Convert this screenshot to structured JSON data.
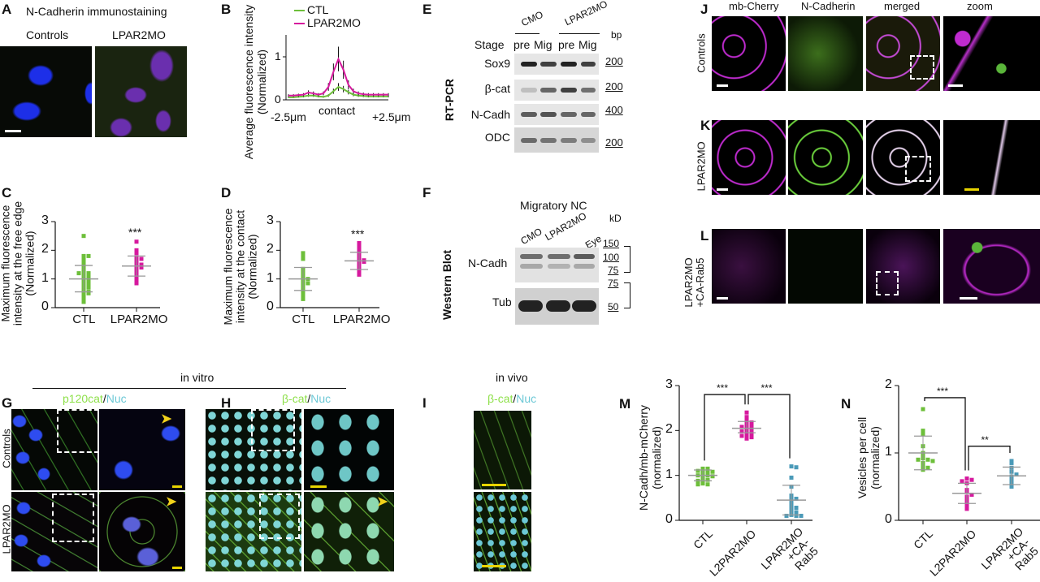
{
  "panels": {
    "A": {
      "letter": "A",
      "title": "N-Cadherin immunostaining",
      "cols": [
        "Controls",
        "LPAR2MO"
      ]
    },
    "B": {
      "letter": "B"
    },
    "C": {
      "letter": "C"
    },
    "D": {
      "letter": "D"
    },
    "E": {
      "letter": "E",
      "method": "RT-PCR",
      "groups": [
        "CMO",
        "LPAR2MO"
      ],
      "stage_label": "Stage",
      "stages": [
        "pre",
        "Mig",
        "pre",
        "Mig"
      ],
      "unit": "bp",
      "rows": [
        {
          "gene": "Sox9",
          "marker": "200"
        },
        {
          "gene": "β-cat",
          "marker": "200"
        },
        {
          "gene": "N-Cadh",
          "marker": "400"
        },
        {
          "gene": "ODC",
          "marker": "200"
        }
      ]
    },
    "F": {
      "letter": "F",
      "method": "Western Blot",
      "title": "Migratory NC",
      "lanes": [
        "CMO",
        "LPAR2MO",
        "Eye"
      ],
      "unit": "kD",
      "rows": [
        "N-Cadh",
        "Tub"
      ],
      "markers": [
        "150",
        "100",
        "75",
        "75",
        "50"
      ]
    },
    "J": {
      "letter": "J",
      "row_label": "Controls"
    },
    "K": {
      "letter": "K",
      "row_label": "LPAR2MO"
    },
    "L": {
      "letter": "L",
      "row_label_1": "LPAR2MO",
      "row_label_2": "+CA-Rab5"
    },
    "JKL_cols": [
      "mb-Cherry",
      "N-Cadherin",
      "merged",
      "zoom"
    ],
    "in_vitro": "in vitro",
    "in_vivo": "in vivo",
    "G": {
      "letter": "G",
      "stain_green": "p120cat",
      "sep": "/",
      "stain_cyan": "Nuc",
      "rows": [
        "Controls",
        "LPAR2MO"
      ]
    },
    "H": {
      "letter": "H",
      "stain_green": "β-cat",
      "sep": "/",
      "stain_cyan": "Nuc"
    },
    "I": {
      "letter": "I",
      "stain_green": "β-cat",
      "sep": "/",
      "stain_cyan": "Nuc"
    },
    "M": {
      "letter": "M"
    },
    "N": {
      "letter": "N"
    }
  },
  "colors": {
    "ctl": "#6dbf3a",
    "lpar2mo": "#d6199e",
    "rab5": "#4a9ab8",
    "mean": "#999999"
  },
  "chart_data": [
    {
      "panel": "B",
      "type": "line",
      "ylabel": "Average fluorescence intensity (Normalized)",
      "xtick_labels": [
        "-2.5μm",
        "contact",
        "+2.5μm"
      ],
      "yticks": [
        0,
        1
      ],
      "ylim": [
        0,
        1.3
      ],
      "xlim": [
        -2.5,
        2.5
      ],
      "x": [
        -2.5,
        -2.25,
        -2,
        -1.75,
        -1.5,
        -1.25,
        -1,
        -0.75,
        -0.5,
        -0.25,
        0,
        0.25,
        0.5,
        0.75,
        1,
        1.25,
        1.5,
        1.75,
        2,
        2.25,
        2.5
      ],
      "series": [
        {
          "name": "CTL",
          "color": "#6dbf3a",
          "values": [
            0.06,
            0.06,
            0.07,
            0.08,
            0.1,
            0.1,
            0.08,
            0.07,
            0.1,
            0.2,
            0.3,
            0.25,
            0.18,
            0.12,
            0.1,
            0.09,
            0.08,
            0.08,
            0.08,
            0.08,
            0.08
          ]
        },
        {
          "name": "LPAR2MO",
          "color": "#d6199e",
          "values": [
            0.1,
            0.1,
            0.11,
            0.12,
            0.17,
            0.15,
            0.12,
            0.15,
            0.3,
            0.65,
            0.95,
            0.7,
            0.35,
            0.2,
            0.15,
            0.13,
            0.12,
            0.12,
            0.12,
            0.12,
            0.12
          ]
        }
      ]
    },
    {
      "panel": "C",
      "type": "scatter",
      "ylabel": "Maximum fluorescence intensity at the free edge (Normalized)",
      "ylim": [
        0,
        3
      ],
      "yticks": [
        0,
        1,
        2,
        3
      ],
      "categories": [
        "CTL",
        "LPAR2MO"
      ],
      "significance": [
        "",
        "***"
      ],
      "series": [
        {
          "color": "#6dbf3a",
          "mean": 1.0,
          "sd": [
            0.55,
            1.47
          ],
          "values": [
            2.5,
            1.8,
            1.8,
            1.75,
            1.7,
            1.65,
            1.6,
            1.5,
            1.45,
            1.4,
            1.35,
            1.3,
            1.2,
            1.2,
            1.2,
            1.15,
            1.15,
            1.1,
            1.1,
            1.05,
            1.0,
            1.0,
            0.95,
            0.95,
            0.9,
            0.9,
            0.85,
            0.8,
            0.8,
            0.75,
            0.75,
            0.7,
            0.7,
            0.65,
            0.6,
            0.55,
            0.55,
            0.5,
            0.5,
            0.45,
            0.4,
            0.35,
            0.3,
            0.25,
            0.2
          ]
        },
        {
          "color": "#d6199e",
          "mean": 1.45,
          "sd": [
            1.1,
            1.8
          ],
          "values": [
            2.3,
            2.0,
            1.9,
            1.75,
            1.7,
            1.7,
            1.65,
            1.6,
            1.55,
            1.5,
            1.5,
            1.45,
            1.4,
            1.4,
            1.35,
            1.3,
            1.25,
            1.2,
            1.15,
            1.1,
            1.05,
            1.0,
            0.95,
            0.85
          ]
        }
      ]
    },
    {
      "panel": "D",
      "type": "scatter",
      "ylabel": "Maximum fluorescence intensity at the contact (Normalized)",
      "ylim": [
        0,
        3
      ],
      "yticks": [
        0,
        1,
        2,
        3
      ],
      "categories": [
        "CTL",
        "LPAR2MO"
      ],
      "significance": [
        "",
        "***"
      ],
      "series": [
        {
          "color": "#6dbf3a",
          "mean": 1.0,
          "sd": [
            0.6,
            1.4
          ],
          "values": [
            1.9,
            1.8,
            1.7,
            1.35,
            1.25,
            1.2,
            1.1,
            1.0,
            1.0,
            0.95,
            0.9,
            0.85,
            0.85,
            0.8,
            0.75,
            0.7,
            0.65,
            0.6,
            0.5,
            0.4,
            0.3
          ]
        },
        {
          "color": "#d6199e",
          "mean": 1.63,
          "sd": [
            1.33,
            1.93
          ],
          "values": [
            2.25,
            2.2,
            2.1,
            2.0,
            1.9,
            1.85,
            1.8,
            1.75,
            1.7,
            1.65,
            1.65,
            1.6,
            1.6,
            1.55,
            1.5,
            1.45,
            1.4,
            1.35,
            1.3,
            1.25,
            1.2,
            1.15
          ]
        }
      ]
    },
    {
      "panel": "M",
      "type": "scatter",
      "ylabel": "N-Cadh/mb-mCherry (normalized)",
      "ylim": [
        0,
        3
      ],
      "yticks": [
        0,
        1,
        2,
        3
      ],
      "categories": [
        "CTL",
        "L2PAR2MO",
        "LPAR2MO +CA-Rab5"
      ],
      "brackets": [
        {
          "from": 0,
          "to": 1,
          "label": "***"
        },
        {
          "from": 1,
          "to": 2,
          "label": "***"
        }
      ],
      "series": [
        {
          "color": "#6dbf3a",
          "mean": 1.0,
          "sd": [
            0.88,
            1.12
          ],
          "values": [
            1.15,
            1.15,
            1.12,
            1.1,
            1.1,
            1.08,
            1.05,
            1.05,
            1.02,
            1.0,
            1.0,
            0.98,
            0.95,
            0.92,
            0.9,
            0.88,
            0.85,
            0.82,
            0.8,
            0.8
          ]
        },
        {
          "color": "#d6199e",
          "mean": 2.05,
          "sd": [
            1.95,
            2.2
          ],
          "values": [
            2.4,
            2.3,
            2.25,
            2.2,
            2.18,
            2.15,
            2.12,
            2.1,
            2.08,
            2.05,
            2.05,
            2.02,
            2.0,
            1.98,
            1.95,
            1.92,
            1.9,
            1.88,
            1.85,
            1.85,
            1.82
          ]
        },
        {
          "color": "#4a9ab8",
          "mean": 0.45,
          "sd": [
            0.12,
            0.78
          ],
          "values": [
            1.2,
            1.18,
            0.95,
            0.75,
            0.55,
            0.5,
            0.48,
            0.45,
            0.4,
            0.35,
            0.3,
            0.28,
            0.25,
            0.2,
            0.18,
            0.15,
            0.12,
            0.1,
            0.1,
            0.1
          ]
        }
      ]
    },
    {
      "panel": "N",
      "type": "scatter",
      "ylabel": "Vesicles per cell (normalized)",
      "ylim": [
        0,
        2
      ],
      "yticks": [
        0,
        1,
        2
      ],
      "categories": [
        "CTL",
        "L2PAR2MO",
        "LPAR2MO +CA-Rab5"
      ],
      "brackets": [
        {
          "from": 0,
          "to": 1,
          "label": "***"
        },
        {
          "from": 1,
          "to": 2,
          "label": "**"
        }
      ],
      "series": [
        {
          "color": "#6dbf3a",
          "mean": 1.0,
          "sd": [
            0.75,
            1.25
          ],
          "values": [
            1.65,
            1.33,
            1.28,
            1.1,
            1.0,
            0.95,
            0.92,
            0.9,
            0.9,
            0.88,
            0.85,
            0.8,
            0.78,
            0.75
          ]
        },
        {
          "color": "#d6199e",
          "mean": 0.4,
          "sd": [
            0.25,
            0.55
          ],
          "values": [
            0.62,
            0.6,
            0.58,
            0.55,
            0.45,
            0.42,
            0.38,
            0.35,
            0.3,
            0.25,
            0.2,
            0.17
          ]
        },
        {
          "color": "#4a9ab8",
          "mean": 0.66,
          "sd": [
            0.53,
            0.79
          ],
          "values": [
            0.88,
            0.85,
            0.78,
            0.72,
            0.68,
            0.65,
            0.6,
            0.55,
            0.5
          ]
        }
      ]
    }
  ]
}
